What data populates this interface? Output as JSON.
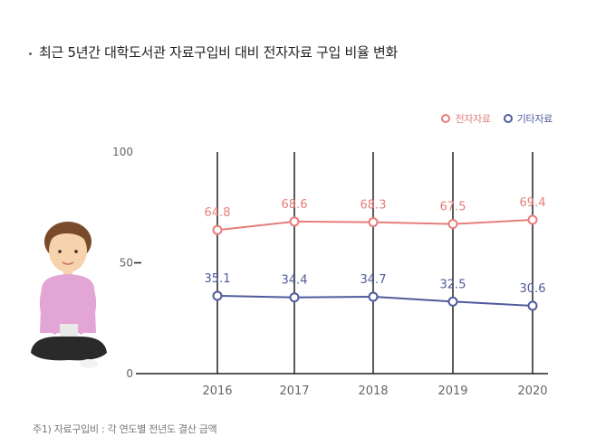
{
  "title": "최근 5년간 대학도서관 자료구입비 대비 전자자료 구입 비율 변화",
  "footnote": "주1) 자료구입비 : 각 연도별 전년도 결산 금액",
  "colors": {
    "series1": "#e57e7a",
    "series2": "#4f5b9c",
    "axis": "#222222",
    "text": "#666666"
  },
  "chart_data": {
    "type": "line",
    "categories": [
      "2016",
      "2017",
      "2018",
      "2019",
      "2020"
    ],
    "series": [
      {
        "name": "전자자료",
        "values": [
          64.8,
          68.6,
          68.3,
          67.5,
          69.4
        ],
        "labels": [
          "64.8",
          "68.6",
          "68.3",
          "67.5",
          "69.4"
        ],
        "color": "#e57e7a"
      },
      {
        "name": "기타자료",
        "values": [
          35.1,
          34.4,
          34.7,
          32.5,
          30.6
        ],
        "labels": [
          "35.1",
          "34.4",
          "34.7",
          "32.5",
          "30.6"
        ],
        "color": "#4f5b9c"
      }
    ],
    "y_ticks": [
      "100",
      "50",
      "0"
    ],
    "ylim": [
      0,
      100
    ],
    "legend_position": "top-right",
    "grid": "vertical"
  }
}
